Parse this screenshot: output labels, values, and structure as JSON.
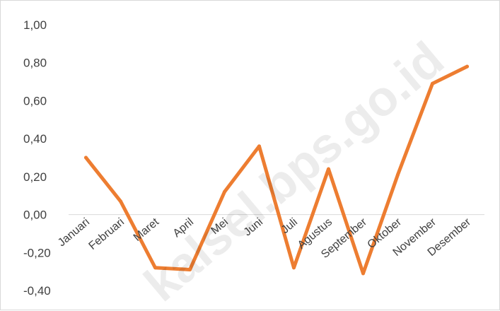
{
  "watermark": "kalsel.bps.go.id",
  "chart_data": {
    "type": "line",
    "categories": [
      "Januari",
      "Februari",
      "Maret",
      "April",
      "Mei",
      "Juni",
      "Juli",
      "Agustus",
      "September",
      "Oktober",
      "November",
      "Desember"
    ],
    "series": [
      {
        "values": [
          0.3,
          0.07,
          -0.28,
          -0.29,
          0.12,
          0.36,
          -0.28,
          0.24,
          -0.31,
          0.21,
          0.69,
          0.78
        ],
        "color": "#ED7D31"
      }
    ],
    "ylim": [
      -0.4,
      1.0
    ],
    "yticks": [
      "1,00",
      "0,80",
      "0,60",
      "0,40",
      "0,20",
      "0,00",
      "-0,20",
      "-0,40"
    ],
    "ytick_values": [
      1.0,
      0.8,
      0.6,
      0.4,
      0.2,
      0.0,
      -0.2,
      -0.4
    ],
    "zero_line_color": "#d9d9d9",
    "grid": false,
    "title": "",
    "xlabel": "",
    "ylabel": ""
  }
}
